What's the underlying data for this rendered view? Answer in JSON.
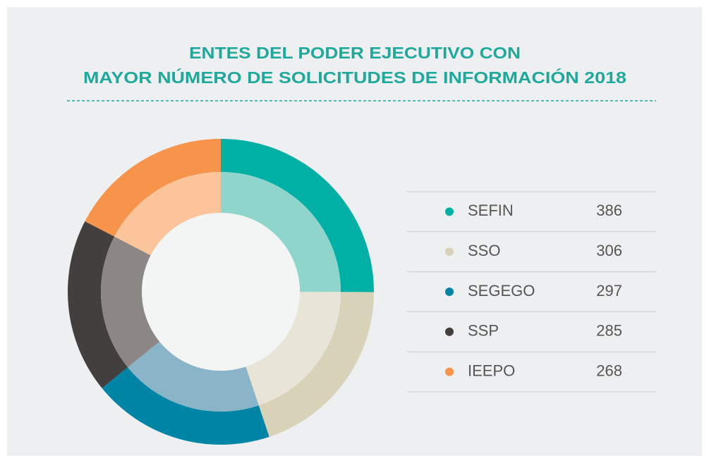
{
  "chart_data": {
    "type": "donut",
    "title": [
      "ENTES DEL PODER EJECUTIVO CON",
      "MAYOR NÚMERO DE SOLICITUDES DE INFORMACIÓN 2018"
    ],
    "categories": [
      "SEFIN",
      "SSO",
      "SEGEGO",
      "SSP",
      "IEEPO"
    ],
    "values": [
      386,
      306,
      297,
      285,
      268
    ],
    "colors": [
      "#00b0a5",
      "#d8d3b8",
      "#0085a6",
      "#443f3f",
      "#f5944a"
    ],
    "inner_colors": [
      "#8fd5cc",
      "#e8e5d8",
      "#8ab5c8",
      "#8c8785",
      "#fbc49b"
    ]
  }
}
